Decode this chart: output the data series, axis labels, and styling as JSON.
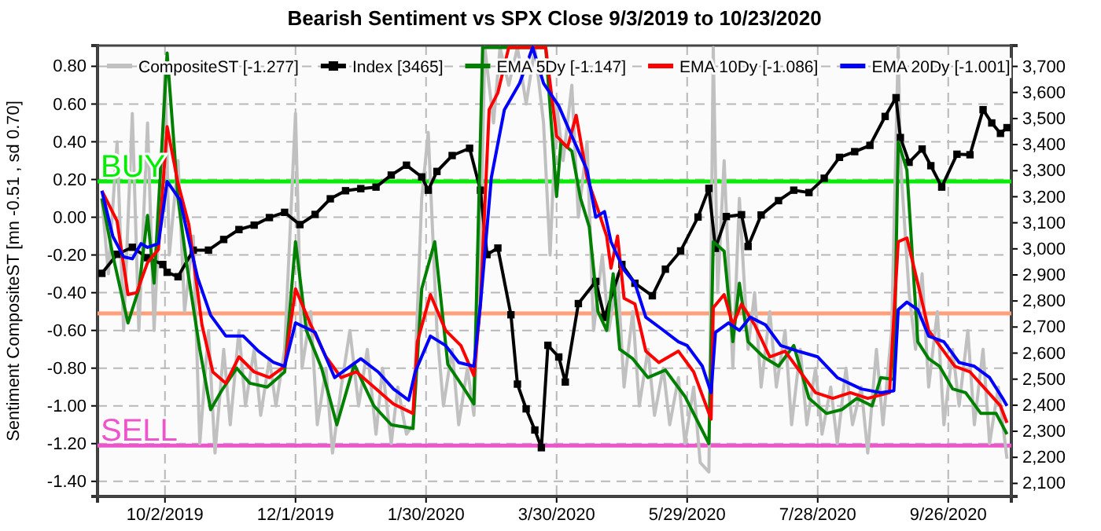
{
  "chart_data": {
    "type": "line",
    "title": "Bearish Sentiment vs SPX Close 9/3/2019 to 10/23/2020",
    "ylabel": "Sentiment CompositeST [mn -0.51 , sd 0.70]",
    "xlim": [
      "2019-09-01",
      "2020-10-25"
    ],
    "xticks": [
      {
        "value": "2019-10-02",
        "label": "10/2/2019"
      },
      {
        "value": "2019-12-01",
        "label": "12/1/2019"
      },
      {
        "value": "2020-01-30",
        "label": "1/30/2020"
      },
      {
        "value": "2020-03-30",
        "label": "3/30/2020"
      },
      {
        "value": "2020-05-29",
        "label": "5/29/2020"
      },
      {
        "value": "2020-07-28",
        "label": "7/28/2020"
      },
      {
        "value": "2020-09-26",
        "label": "9/26/2020"
      }
    ],
    "ylim": [
      -1.48,
      0.91
    ],
    "yticks": [
      {
        "value": -1.4,
        "label": "-1.40"
      },
      {
        "value": -1.2,
        "label": "-1.20"
      },
      {
        "value": -1.0,
        "label": "-1.00"
      },
      {
        "value": -0.8,
        "label": "-0.80"
      },
      {
        "value": -0.6,
        "label": "-0.60"
      },
      {
        "value": -0.4,
        "label": "-0.40"
      },
      {
        "value": -0.2,
        "label": "-0.20"
      },
      {
        "value": 0,
        "label": "0.00"
      },
      {
        "value": 0.2,
        "label": "0.20"
      },
      {
        "value": 0.4,
        "label": "0.40"
      },
      {
        "value": 0.6,
        "label": "0.60"
      },
      {
        "value": 0.8,
        "label": "0.80"
      }
    ],
    "y2lim": [
      2050,
      3780
    ],
    "y2ticks": [
      {
        "value": 2100,
        "label": "2,100"
      },
      {
        "value": 2200,
        "label": "2,200"
      },
      {
        "value": 2300,
        "label": "2,300"
      },
      {
        "value": 2400,
        "label": "2,400"
      },
      {
        "value": 2500,
        "label": "2,500"
      },
      {
        "value": 2600,
        "label": "2,600"
      },
      {
        "value": 2700,
        "label": "2,700"
      },
      {
        "value": 2800,
        "label": "2,800"
      },
      {
        "value": 2900,
        "label": "2,900"
      },
      {
        "value": 3000,
        "label": "3,000"
      },
      {
        "value": 3100,
        "label": "3,100"
      },
      {
        "value": 3200,
        "label": "3,200"
      },
      {
        "value": 3300,
        "label": "3,300"
      },
      {
        "value": 3400,
        "label": "3,400"
      },
      {
        "value": 3500,
        "label": "3,500"
      },
      {
        "value": 3600,
        "label": "3,600"
      },
      {
        "value": 3700,
        "label": "3,700"
      }
    ],
    "grid": true,
    "legend": "top",
    "ref_lines": [
      {
        "axis": "y",
        "value": 0.19,
        "label": "BUY",
        "color": "#00ee00"
      },
      {
        "axis": "y",
        "value": -0.51,
        "label": null,
        "color": "#ffa07a"
      },
      {
        "axis": "y",
        "value": -1.21,
        "label": "SELL",
        "color": "#ee55cc"
      }
    ],
    "series": [
      {
        "name": "CompositeST [-1.277]",
        "color": "#c0c0c0",
        "marker": "none",
        "x": [
          "2019-09-03",
          "2019-09-06",
          "2019-09-10",
          "2019-09-13",
          "2019-09-17",
          "2019-09-20",
          "2019-09-24",
          "2019-09-27",
          "2019-10-01",
          "2019-10-02",
          "2019-10-04",
          "2019-10-08",
          "2019-10-11",
          "2019-10-15",
          "2019-10-18",
          "2019-10-22",
          "2019-10-25",
          "2019-10-29",
          "2019-11-01",
          "2019-11-05",
          "2019-11-08",
          "2019-11-12",
          "2019-11-15",
          "2019-11-19",
          "2019-11-22",
          "2019-11-26",
          "2019-12-01",
          "2019-12-04",
          "2019-12-08",
          "2019-12-11",
          "2019-12-15",
          "2019-12-18",
          "2019-12-22",
          "2019-12-26",
          "2019-12-30",
          "2020-01-03",
          "2020-01-07",
          "2020-01-10",
          "2020-01-14",
          "2020-01-17",
          "2020-01-21",
          "2020-01-24",
          "2020-01-28",
          "2020-01-31",
          "2020-02-04",
          "2020-02-07",
          "2020-02-11",
          "2020-02-14",
          "2020-02-18",
          "2020-02-21",
          "2020-02-24",
          "2020-02-26",
          "2020-03-01",
          "2020-03-04",
          "2020-03-08",
          "2020-03-12",
          "2020-03-16",
          "2020-03-20",
          "2020-03-24",
          "2020-03-27",
          "2020-03-30",
          "2020-04-02",
          "2020-04-06",
          "2020-04-09",
          "2020-04-13",
          "2020-04-16",
          "2020-04-20",
          "2020-04-23",
          "2020-04-27",
          "2020-04-30",
          "2020-05-04",
          "2020-05-07",
          "2020-05-11",
          "2020-05-14",
          "2020-05-18",
          "2020-05-21",
          "2020-05-25",
          "2020-05-28",
          "2020-06-01",
          "2020-06-04",
          "2020-06-08",
          "2020-06-10",
          "2020-06-12",
          "2020-06-15",
          "2020-06-19",
          "2020-06-22",
          "2020-06-26",
          "2020-06-29",
          "2020-07-02",
          "2020-07-06",
          "2020-07-09",
          "2020-07-13",
          "2020-07-16",
          "2020-07-20",
          "2020-07-23",
          "2020-07-27",
          "2020-07-30",
          "2020-08-03",
          "2020-08-06",
          "2020-08-10",
          "2020-08-13",
          "2020-08-17",
          "2020-08-20",
          "2020-08-24",
          "2020-08-27",
          "2020-08-31",
          "2020-09-03",
          "2020-09-04",
          "2020-09-08",
          "2020-09-11",
          "2020-09-14",
          "2020-09-17",
          "2020-09-21",
          "2020-09-24",
          "2020-09-28",
          "2020-10-01",
          "2020-10-05",
          "2020-10-08",
          "2020-10-12",
          "2020-10-15",
          "2020-10-19",
          "2020-10-23"
        ],
        "values": [
          0.1,
          -0.3,
          0.4,
          -0.6,
          0.55,
          -0.6,
          0.5,
          -0.6,
          0.4,
          0.8,
          -0.2,
          0.3,
          -0.5,
          -0.1,
          -1.2,
          -0.6,
          -1.25,
          -0.7,
          -1.1,
          -0.6,
          -1.0,
          -0.7,
          -1.05,
          -0.75,
          -1.0,
          -0.7,
          0.55,
          -0.8,
          -0.5,
          -1.1,
          -0.8,
          -1.25,
          -0.9,
          -0.6,
          -1.0,
          -0.7,
          -1.15,
          -0.8,
          -1.2,
          -0.9,
          -1.15,
          -1.1,
          0.1,
          0.45,
          -0.6,
          -1.0,
          -0.7,
          -1.1,
          -0.8,
          -1.05,
          -0.2,
          0.9,
          0.5,
          0.9,
          0.7,
          0.9,
          0.6,
          0.9,
          0.5,
          -0.2,
          0.6,
          0.3,
          0.7,
          0.0,
          0.4,
          -0.6,
          -0.2,
          -0.6,
          -0.3,
          -0.9,
          -0.5,
          -1.0,
          -0.7,
          -1.05,
          -0.8,
          -1.1,
          -0.85,
          -1.2,
          -0.9,
          -1.3,
          -1.35,
          0.9,
          -0.4,
          0.3,
          -0.8,
          0.1,
          -0.7,
          -0.4,
          -0.9,
          -0.5,
          -0.9,
          -0.6,
          -1.1,
          -0.7,
          -1.1,
          -0.8,
          -1.15,
          -0.9,
          -1.2,
          -0.8,
          -1.1,
          -0.9,
          -1.25,
          -0.7,
          -1.1,
          -0.6,
          0.9,
          0.3,
          -0.4,
          -0.7,
          -0.3,
          -0.9,
          -0.5,
          -1.1,
          -0.7,
          -1.0,
          -0.6,
          -1.1,
          -0.7,
          -1.2,
          -0.9,
          -1.28
        ]
      },
      {
        "name": "Index [3465]",
        "color": "#000000",
        "marker": "square",
        "axis": "y2",
        "x": [
          "2019-09-03",
          "2019-09-10",
          "2019-09-17",
          "2019-09-24",
          "2019-10-01",
          "2019-10-03",
          "2019-10-08",
          "2019-10-15",
          "2019-10-22",
          "2019-10-29",
          "2019-11-05",
          "2019-11-12",
          "2019-11-19",
          "2019-11-26",
          "2019-12-03",
          "2019-12-10",
          "2019-12-17",
          "2019-12-24",
          "2019-12-31",
          "2020-01-07",
          "2020-01-14",
          "2020-01-21",
          "2020-01-28",
          "2020-01-31",
          "2020-02-04",
          "2020-02-11",
          "2020-02-19",
          "2020-02-24",
          "2020-02-27",
          "2020-03-03",
          "2020-03-09",
          "2020-03-12",
          "2020-03-16",
          "2020-03-20",
          "2020-03-23",
          "2020-03-26",
          "2020-03-31",
          "2020-04-03",
          "2020-04-09",
          "2020-04-17",
          "2020-04-21",
          "2020-04-29",
          "2020-05-05",
          "2020-05-13",
          "2020-05-19",
          "2020-05-26",
          "2020-06-03",
          "2020-06-08",
          "2020-06-11",
          "2020-06-16",
          "2020-06-23",
          "2020-06-26",
          "2020-07-02",
          "2020-07-10",
          "2020-07-17",
          "2020-07-24",
          "2020-07-31",
          "2020-08-07",
          "2020-08-14",
          "2020-08-21",
          "2020-08-28",
          "2020-09-02",
          "2020-09-04",
          "2020-09-08",
          "2020-09-14",
          "2020-09-18",
          "2020-09-23",
          "2020-09-30",
          "2020-10-06",
          "2020-10-12",
          "2020-10-16",
          "2020-10-20",
          "2020-10-23"
        ],
        "values": [
          2906,
          2979,
          3006,
          2966,
          2940,
          2910,
          2893,
          2995,
          2995,
          3036,
          3074,
          3091,
          3120,
          3140,
          3093,
          3132,
          3192,
          3223,
          3231,
          3237,
          3283,
          3321,
          3276,
          3225,
          3297,
          3358,
          3386,
          3225,
          2978,
          3003,
          2747,
          2481,
          2386,
          2305,
          2237,
          2630,
          2585,
          2489,
          2790,
          2875,
          2737,
          2940,
          2868,
          2820,
          2922,
          2992,
          3122,
          3232,
          3002,
          3124,
          3131,
          3009,
          3130,
          3185,
          3225,
          3216,
          3271,
          3351,
          3373,
          3397,
          3508,
          3580,
          3427,
          3332,
          3383,
          3319,
          3237,
          3363,
          3361,
          3534,
          3483,
          3443,
          3465
        ]
      },
      {
        "name": "EMA 5Dy [-1.147]",
        "color": "#008000",
        "marker": "none",
        "x": [
          "2019-09-03",
          "2019-09-08",
          "2019-09-15",
          "2019-09-20",
          "2019-09-24",
          "2019-09-27",
          "2019-10-03",
          "2019-10-08",
          "2019-10-12",
          "2019-10-18",
          "2019-10-23",
          "2019-10-28",
          "2019-11-04",
          "2019-11-10",
          "2019-11-18",
          "2019-11-26",
          "2019-12-01",
          "2019-12-06",
          "2019-12-13",
          "2019-12-20",
          "2019-12-28",
          "2020-01-06",
          "2020-01-14",
          "2020-01-24",
          "2020-01-28",
          "2020-02-03",
          "2020-02-09",
          "2020-02-16",
          "2020-02-21",
          "2020-02-25",
          "2020-03-25",
          "2020-03-30",
          "2020-04-01",
          "2020-04-06",
          "2020-04-10",
          "2020-04-14",
          "2020-04-18",
          "2020-04-22",
          "2020-04-25",
          "2020-04-28",
          "2020-05-04",
          "2020-05-11",
          "2020-05-19",
          "2020-05-28",
          "2020-06-08",
          "2020-06-10",
          "2020-06-15",
          "2020-06-19",
          "2020-06-22",
          "2020-06-26",
          "2020-07-03",
          "2020-07-10",
          "2020-07-17",
          "2020-07-24",
          "2020-08-01",
          "2020-08-08",
          "2020-08-15",
          "2020-08-22",
          "2020-08-26",
          "2020-09-01",
          "2020-09-03",
          "2020-09-07",
          "2020-09-12",
          "2020-09-17",
          "2020-09-22",
          "2020-09-28",
          "2020-10-04",
          "2020-10-11",
          "2020-10-18",
          "2020-10-23"
        ],
        "values": [
          0.1,
          -0.2,
          -0.56,
          -0.38,
          0.01,
          -0.35,
          0.87,
          0.1,
          -0.25,
          -0.7,
          -1.02,
          -0.92,
          -0.8,
          -0.88,
          -0.9,
          -0.82,
          -0.13,
          -0.6,
          -0.8,
          -1.1,
          -0.78,
          -1.0,
          -1.1,
          -1.12,
          -0.38,
          -0.13,
          -0.78,
          -0.9,
          -0.99,
          0.9,
          0.9,
          0.11,
          0.4,
          0.35,
          0.1,
          -0.05,
          -0.5,
          -0.6,
          -0.3,
          -0.7,
          -0.75,
          -0.85,
          -0.81,
          -0.95,
          -1.2,
          -0.13,
          -0.18,
          -0.66,
          -0.35,
          -0.66,
          -0.74,
          -0.79,
          -0.68,
          -0.96,
          -1.04,
          -1.02,
          -0.96,
          -1.0,
          -0.85,
          -0.86,
          0.4,
          0.25,
          -0.66,
          -0.75,
          -0.79,
          -0.91,
          -0.93,
          -1.04,
          -1.04,
          -1.15
        ]
      },
      {
        "name": "EMA 10Dy [-1.086]",
        "color": "#ff0000",
        "marker": "none",
        "x": [
          "2019-09-03",
          "2019-09-10",
          "2019-09-15",
          "2019-09-19",
          "2019-09-24",
          "2019-09-29",
          "2019-10-03",
          "2019-10-08",
          "2019-10-13",
          "2019-10-19",
          "2019-10-24",
          "2019-10-30",
          "2019-11-05",
          "2019-11-12",
          "2019-11-19",
          "2019-11-26",
          "2019-12-01",
          "2019-12-08",
          "2019-12-15",
          "2019-12-22",
          "2019-12-29",
          "2020-01-07",
          "2020-01-15",
          "2020-01-24",
          "2020-01-26",
          "2020-02-01",
          "2020-02-08",
          "2020-02-15",
          "2020-02-21",
          "2020-02-24",
          "2020-02-28",
          "2020-03-03",
          "2020-03-08",
          "2020-03-25",
          "2020-03-30",
          "2020-04-04",
          "2020-04-08",
          "2020-04-13",
          "2020-04-18",
          "2020-04-22",
          "2020-04-24",
          "2020-04-27",
          "2020-04-30",
          "2020-05-05",
          "2020-05-10",
          "2020-05-16",
          "2020-05-25",
          "2020-06-01",
          "2020-06-09",
          "2020-06-10",
          "2020-06-15",
          "2020-06-19",
          "2020-06-23",
          "2020-06-29",
          "2020-07-06",
          "2020-07-13",
          "2020-07-20",
          "2020-07-27",
          "2020-08-04",
          "2020-08-12",
          "2020-08-20",
          "2020-08-30",
          "2020-09-03",
          "2020-09-07",
          "2020-09-12",
          "2020-09-17",
          "2020-09-22",
          "2020-09-29",
          "2020-10-06",
          "2020-10-13",
          "2020-10-20",
          "2020-10-23"
        ],
        "values": [
          0.14,
          -0.02,
          -0.41,
          -0.4,
          -0.24,
          -0.17,
          0.48,
          0.18,
          -0.04,
          -0.57,
          -0.82,
          -0.88,
          -0.74,
          -0.82,
          -0.85,
          -0.79,
          -0.38,
          -0.57,
          -0.74,
          -0.85,
          -0.82,
          -0.91,
          -0.99,
          -1.04,
          -0.66,
          -0.41,
          -0.6,
          -0.68,
          -0.84,
          -0.46,
          0.57,
          0.66,
          0.9,
          0.9,
          0.43,
          0.37,
          0.54,
          0.21,
          0.04,
          -0.1,
          -0.27,
          -0.1,
          -0.43,
          -0.46,
          -0.71,
          -0.77,
          -0.71,
          -0.82,
          -1.07,
          -0.48,
          -0.41,
          -0.57,
          -0.46,
          -0.57,
          -0.74,
          -0.71,
          -0.82,
          -0.93,
          -0.96,
          -0.93,
          -0.96,
          -0.93,
          -0.13,
          -0.11,
          -0.35,
          -0.6,
          -0.68,
          -0.79,
          -0.82,
          -0.91,
          -1.0,
          -1.09
        ]
      },
      {
        "name": "EMA 20Dy [-1.001]",
        "color": "#0000ff",
        "marker": "none",
        "x": [
          "2019-09-03",
          "2019-09-08",
          "2019-09-13",
          "2019-09-17",
          "2019-09-21",
          "2019-09-24",
          "2019-09-29",
          "2019-10-03",
          "2019-10-09",
          "2019-10-12",
          "2019-10-17",
          "2019-10-23",
          "2019-10-30",
          "2019-11-07",
          "2019-11-14",
          "2019-11-21",
          "2019-11-26",
          "2019-12-01",
          "2019-12-10",
          "2019-12-19",
          "2019-12-31",
          "2020-01-08",
          "2020-01-15",
          "2020-01-22",
          "2020-01-25",
          "2020-02-01",
          "2020-02-08",
          "2020-02-14",
          "2020-02-21",
          "2020-02-24",
          "2020-02-29",
          "2020-03-06",
          "2020-03-13",
          "2020-03-19",
          "2020-03-24",
          "2020-03-31",
          "2020-04-06",
          "2020-04-13",
          "2020-04-17",
          "2020-04-21",
          "2020-04-24",
          "2020-04-30",
          "2020-05-05",
          "2020-05-10",
          "2020-05-17",
          "2020-05-25",
          "2020-05-29",
          "2020-06-05",
          "2020-06-09",
          "2020-06-11",
          "2020-06-17",
          "2020-06-22",
          "2020-06-27",
          "2020-07-04",
          "2020-07-11",
          "2020-07-19",
          "2020-07-28",
          "2020-08-06",
          "2020-08-17",
          "2020-08-26",
          "2020-09-01",
          "2020-09-03",
          "2020-09-07",
          "2020-09-12",
          "2020-09-17",
          "2020-09-24",
          "2020-10-01",
          "2020-10-08",
          "2020-10-15",
          "2020-10-21",
          "2020-10-23"
        ],
        "values": [
          0.14,
          -0.1,
          -0.21,
          -0.22,
          -0.14,
          -0.16,
          -0.14,
          0.19,
          0.09,
          -0.07,
          -0.32,
          -0.52,
          -0.63,
          -0.63,
          -0.71,
          -0.77,
          -0.79,
          -0.56,
          -0.61,
          -0.85,
          -0.75,
          -0.82,
          -0.91,
          -0.97,
          -0.82,
          -0.63,
          -0.68,
          -0.77,
          -0.79,
          -0.46,
          0.21,
          0.57,
          0.71,
          0.9,
          0.71,
          0.59,
          0.43,
          0.25,
          0.0,
          0.03,
          -0.13,
          -0.28,
          -0.35,
          -0.53,
          -0.59,
          -0.66,
          -0.68,
          -0.79,
          -0.93,
          -0.61,
          -0.56,
          -0.6,
          -0.53,
          -0.57,
          -0.68,
          -0.71,
          -0.74,
          -0.85,
          -0.91,
          -0.93,
          -0.92,
          -0.49,
          -0.45,
          -0.49,
          -0.63,
          -0.66,
          -0.77,
          -0.79,
          -0.85,
          -0.96,
          -1.0
        ]
      }
    ]
  }
}
